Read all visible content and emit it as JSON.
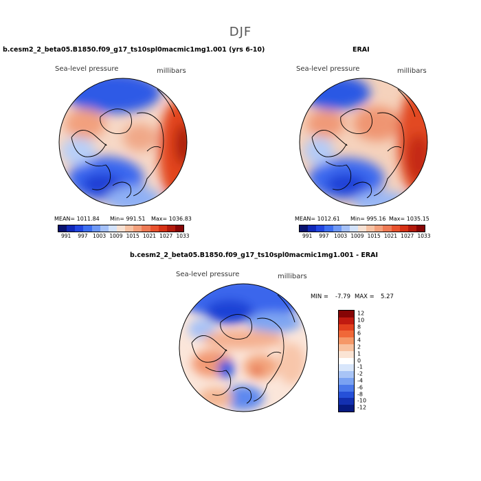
{
  "season": "DJF",
  "panels": [
    {
      "title": "b.cesm2_2_beta05.B1850.f09_g17_ts10spl0macmic1mg1.001 (yrs 6-10)",
      "variable": "Sea-level pressure",
      "units": "millibars",
      "mean": "MEAN= 1011.84",
      "min": "Min= 991.51",
      "max": "Max= 1036.83"
    },
    {
      "title": "ERAI",
      "variable": "Sea-level pressure",
      "units": "millibars",
      "mean": "MEAN= 1012.61",
      "min": "Min= 995.16",
      "max": "Max= 1035.15"
    }
  ],
  "abs_colorbar": {
    "colors": [
      "#08126e",
      "#1028b8",
      "#2246e0",
      "#3e6ff0",
      "#6e98f5",
      "#a4c0f8",
      "#d2e2fb",
      "#f7e1d3",
      "#f7c2a4",
      "#f3a07c",
      "#ee7a55",
      "#e8522e",
      "#d63216",
      "#b21a0c",
      "#860505"
    ],
    "labels": [
      "991",
      "997",
      "1003",
      "1009",
      "1015",
      "1021",
      "1027",
      "1033"
    ]
  },
  "diff_panel": {
    "title": "b.cesm2_2_beta05.B1850.f09_g17_ts10spl0macmic1mg1.001 - ERAI",
    "variable": "Sea-level pressure",
    "units": "millibars",
    "min_label": "MIN =",
    "min_value": "-7.79",
    "max_label": "MAX =",
    "max_value": "5.27"
  },
  "diff_colorbar": {
    "colors": [
      "#860505",
      "#c01a10",
      "#e2401e",
      "#f06838",
      "#f59868",
      "#f8c2a0",
      "#fbe4d4",
      "#ffffff",
      "#d8e6fb",
      "#a8c4f6",
      "#7aa2f2",
      "#4a78ea",
      "#2650d8",
      "#1330b0",
      "#061a80"
    ],
    "labels": [
      "12",
      "10",
      "8",
      "6",
      "4",
      "2",
      "1",
      "0",
      "-1",
      "-2",
      "-4",
      "-6",
      "-8",
      "-10",
      "-12"
    ]
  }
}
